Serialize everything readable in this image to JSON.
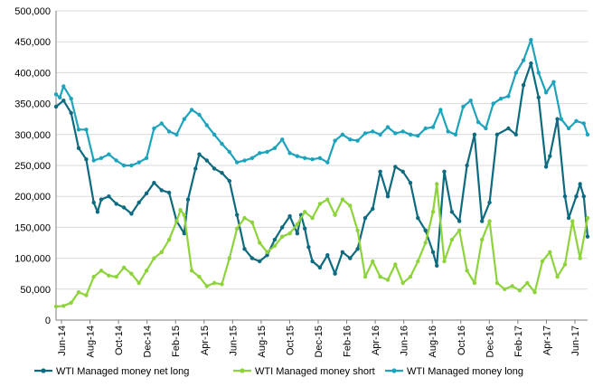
{
  "chart_data": {
    "type": "line",
    "ylim": [
      0,
      500000
    ],
    "yticks": [
      "0",
      "50,000",
      "100,000",
      "150,000",
      "200,000",
      "250,000",
      "300,000",
      "350,000",
      "400,000",
      "450,000",
      "500,000"
    ],
    "xticks": [
      "Jun-14",
      "Aug-14",
      "Oct-14",
      "Dec-14",
      "Feb-15",
      "Apr-15",
      "Jun-15",
      "Aug-15",
      "Oct-15",
      "Dec-15",
      "Feb-16",
      "Apr-16",
      "Jun-16",
      "Aug-16",
      "Oct-16",
      "Dec-16",
      "Feb-17",
      "Apr-17",
      "Jun-17"
    ],
    "grid": "horizontal",
    "legend": "bottom",
    "series": [
      {
        "name": "WTI Managed money net long",
        "color": "#0e6a7e",
        "points": [
          [
            0,
            345000
          ],
          [
            2,
            355000
          ],
          [
            4,
            335000
          ],
          [
            6,
            278000
          ],
          [
            8,
            260000
          ],
          [
            10,
            190000
          ],
          [
            11,
            175000
          ],
          [
            12,
            195000
          ],
          [
            14,
            200000
          ],
          [
            16,
            188000
          ],
          [
            18,
            182000
          ],
          [
            20,
            172000
          ],
          [
            22,
            190000
          ],
          [
            24,
            205000
          ],
          [
            26,
            222000
          ],
          [
            28,
            210000
          ],
          [
            30,
            206000
          ],
          [
            32,
            160000
          ],
          [
            34,
            140000
          ],
          [
            35,
            195000
          ],
          [
            37,
            245000
          ],
          [
            38,
            268000
          ],
          [
            40,
            258000
          ],
          [
            42,
            245000
          ],
          [
            44,
            238000
          ],
          [
            46,
            225000
          ],
          [
            48,
            170000
          ],
          [
            50,
            115000
          ],
          [
            52,
            100000
          ],
          [
            54,
            95000
          ],
          [
            56,
            105000
          ],
          [
            58,
            130000
          ],
          [
            60,
            150000
          ],
          [
            62,
            168000
          ],
          [
            64,
            140000
          ],
          [
            65,
            170000
          ],
          [
            66,
            148000
          ],
          [
            67,
            118000
          ],
          [
            68,
            95000
          ],
          [
            70,
            85000
          ],
          [
            72,
            105000
          ],
          [
            74,
            75000
          ],
          [
            76,
            110000
          ],
          [
            78,
            100000
          ],
          [
            80,
            115000
          ],
          [
            82,
            165000
          ],
          [
            84,
            180000
          ],
          [
            86,
            240000
          ],
          [
            88,
            200000
          ],
          [
            90,
            248000
          ],
          [
            92,
            240000
          ],
          [
            94,
            222000
          ],
          [
            96,
            165000
          ],
          [
            98,
            145000
          ],
          [
            100,
            110000
          ],
          [
            101,
            88000
          ],
          [
            103,
            240000
          ],
          [
            105,
            175000
          ],
          [
            107,
            160000
          ],
          [
            109,
            250000
          ],
          [
            111,
            300000
          ],
          [
            113,
            160000
          ],
          [
            115,
            190000
          ],
          [
            117,
            300000
          ],
          [
            120,
            310000
          ],
          [
            122,
            300000
          ],
          [
            124,
            380000
          ],
          [
            126,
            415000
          ],
          [
            128,
            360000
          ],
          [
            130,
            248000
          ],
          [
            131,
            265000
          ],
          [
            133,
            325000
          ],
          [
            135,
            200000
          ],
          [
            136,
            165000
          ],
          [
            138,
            200000
          ],
          [
            139,
            220000
          ],
          [
            140,
            200000
          ],
          [
            141,
            135000
          ]
        ]
      },
      {
        "name": "WTI Managed money short",
        "color": "#8ed33c",
        "points": [
          [
            0,
            22000
          ],
          [
            2,
            23000
          ],
          [
            4,
            28000
          ],
          [
            6,
            45000
          ],
          [
            8,
            40000
          ],
          [
            10,
            70000
          ],
          [
            12,
            80000
          ],
          [
            14,
            72000
          ],
          [
            16,
            70000
          ],
          [
            18,
            85000
          ],
          [
            20,
            75000
          ],
          [
            22,
            60000
          ],
          [
            24,
            80000
          ],
          [
            26,
            100000
          ],
          [
            28,
            110000
          ],
          [
            30,
            130000
          ],
          [
            32,
            160000
          ],
          [
            33,
            178000
          ],
          [
            34,
            170000
          ],
          [
            36,
            80000
          ],
          [
            38,
            70000
          ],
          [
            40,
            55000
          ],
          [
            42,
            60000
          ],
          [
            44,
            58000
          ],
          [
            46,
            100000
          ],
          [
            48,
            148000
          ],
          [
            50,
            165000
          ],
          [
            52,
            158000
          ],
          [
            54,
            125000
          ],
          [
            56,
            110000
          ],
          [
            58,
            120000
          ],
          [
            60,
            135000
          ],
          [
            62,
            140000
          ],
          [
            64,
            155000
          ],
          [
            66,
            175000
          ],
          [
            68,
            165000
          ],
          [
            70,
            188000
          ],
          [
            72,
            195000
          ],
          [
            74,
            170000
          ],
          [
            76,
            195000
          ],
          [
            78,
            185000
          ],
          [
            80,
            145000
          ],
          [
            82,
            70000
          ],
          [
            84,
            95000
          ],
          [
            86,
            70000
          ],
          [
            88,
            65000
          ],
          [
            90,
            90000
          ],
          [
            92,
            60000
          ],
          [
            94,
            70000
          ],
          [
            96,
            95000
          ],
          [
            98,
            125000
          ],
          [
            100,
            175000
          ],
          [
            101,
            220000
          ],
          [
            103,
            95000
          ],
          [
            105,
            130000
          ],
          [
            107,
            145000
          ],
          [
            109,
            80000
          ],
          [
            111,
            60000
          ],
          [
            113,
            130000
          ],
          [
            115,
            160000
          ],
          [
            117,
            60000
          ],
          [
            119,
            50000
          ],
          [
            121,
            55000
          ],
          [
            123,
            48000
          ],
          [
            125,
            60000
          ],
          [
            127,
            45000
          ],
          [
            129,
            95000
          ],
          [
            131,
            110000
          ],
          [
            133,
            70000
          ],
          [
            135,
            90000
          ],
          [
            137,
            160000
          ],
          [
            139,
            100000
          ],
          [
            141,
            165000
          ]
        ]
      },
      {
        "name": "WTI Managed money long",
        "color": "#1ea3bd",
        "points": [
          [
            0,
            365000
          ],
          [
            1,
            360000
          ],
          [
            2,
            378000
          ],
          [
            4,
            358000
          ],
          [
            6,
            308000
          ],
          [
            8,
            308000
          ],
          [
            10,
            258000
          ],
          [
            12,
            262000
          ],
          [
            14,
            268000
          ],
          [
            16,
            258000
          ],
          [
            18,
            250000
          ],
          [
            20,
            250000
          ],
          [
            22,
            255000
          ],
          [
            24,
            262000
          ],
          [
            26,
            310000
          ],
          [
            28,
            318000
          ],
          [
            30,
            305000
          ],
          [
            32,
            300000
          ],
          [
            34,
            325000
          ],
          [
            36,
            340000
          ],
          [
            38,
            332000
          ],
          [
            40,
            315000
          ],
          [
            42,
            300000
          ],
          [
            44,
            285000
          ],
          [
            46,
            272000
          ],
          [
            48,
            255000
          ],
          [
            50,
            258000
          ],
          [
            52,
            262000
          ],
          [
            54,
            270000
          ],
          [
            56,
            272000
          ],
          [
            58,
            278000
          ],
          [
            60,
            292000
          ],
          [
            62,
            270000
          ],
          [
            64,
            265000
          ],
          [
            66,
            262000
          ],
          [
            68,
            260000
          ],
          [
            70,
            262000
          ],
          [
            72,
            255000
          ],
          [
            74,
            290000
          ],
          [
            76,
            300000
          ],
          [
            78,
            292000
          ],
          [
            80,
            290000
          ],
          [
            82,
            302000
          ],
          [
            84,
            305000
          ],
          [
            86,
            300000
          ],
          [
            88,
            312000
          ],
          [
            90,
            302000
          ],
          [
            92,
            305000
          ],
          [
            94,
            300000
          ],
          [
            96,
            298000
          ],
          [
            98,
            310000
          ],
          [
            100,
            312000
          ],
          [
            102,
            340000
          ],
          [
            104,
            305000
          ],
          [
            106,
            300000
          ],
          [
            108,
            345000
          ],
          [
            110,
            355000
          ],
          [
            112,
            320000
          ],
          [
            114,
            310000
          ],
          [
            116,
            350000
          ],
          [
            118,
            358000
          ],
          [
            120,
            362000
          ],
          [
            122,
            400000
          ],
          [
            124,
            420000
          ],
          [
            126,
            453000
          ],
          [
            128,
            400000
          ],
          [
            130,
            368000
          ],
          [
            132,
            385000
          ],
          [
            134,
            325000
          ],
          [
            136,
            310000
          ],
          [
            138,
            322000
          ],
          [
            140,
            318000
          ],
          [
            141,
            300000
          ]
        ]
      }
    ]
  }
}
